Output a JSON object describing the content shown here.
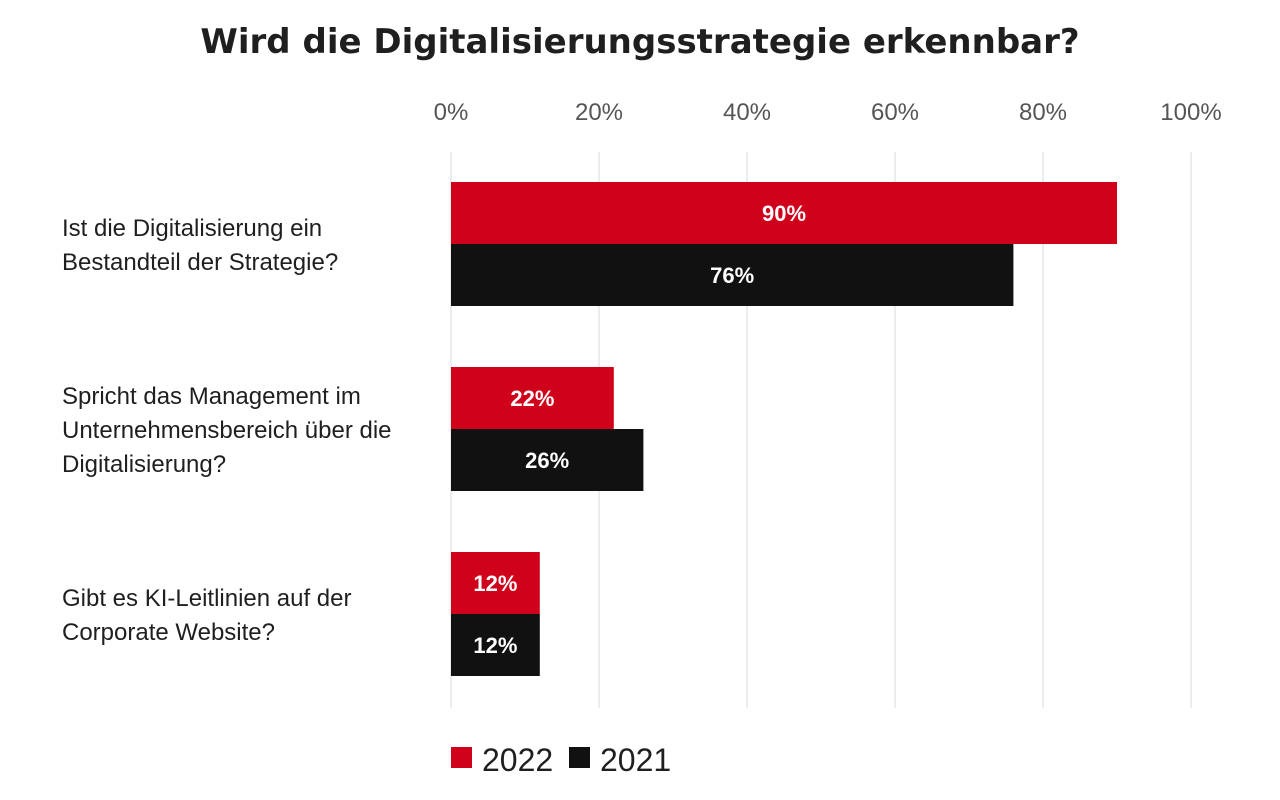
{
  "chart_data": {
    "type": "bar",
    "orientation": "horizontal",
    "title": "Wird die Digitalisierungsstrategie erkennbar?",
    "categories": [
      [
        "Ist die Digitalisierung ein",
        "Bestandteil der Strategie?"
      ],
      [
        "Spricht das Management im",
        "Unternehmensbereich über die",
        "Digitalisierung?"
      ],
      [
        "Gibt es KI-Leitlinien auf der",
        "Corporate Website?"
      ]
    ],
    "series": [
      {
        "name": "2022",
        "color": "#d0021b",
        "values": [
          90,
          22,
          12
        ],
        "labels": [
          "90%",
          "22%",
          "12%"
        ]
      },
      {
        "name": "2021",
        "color": "#111111",
        "values": [
          76,
          26,
          12
        ],
        "labels": [
          "76%",
          "26%",
          "12%"
        ]
      }
    ],
    "xlim": [
      0,
      100
    ],
    "ticks": [
      0,
      20,
      40,
      60,
      80,
      100
    ],
    "tick_labels": [
      "0%",
      "20%",
      "40%",
      "60%",
      "80%",
      "100%"
    ],
    "grid": true,
    "grid_color": "#e6e6e6",
    "legend_position": "bottom-center"
  }
}
